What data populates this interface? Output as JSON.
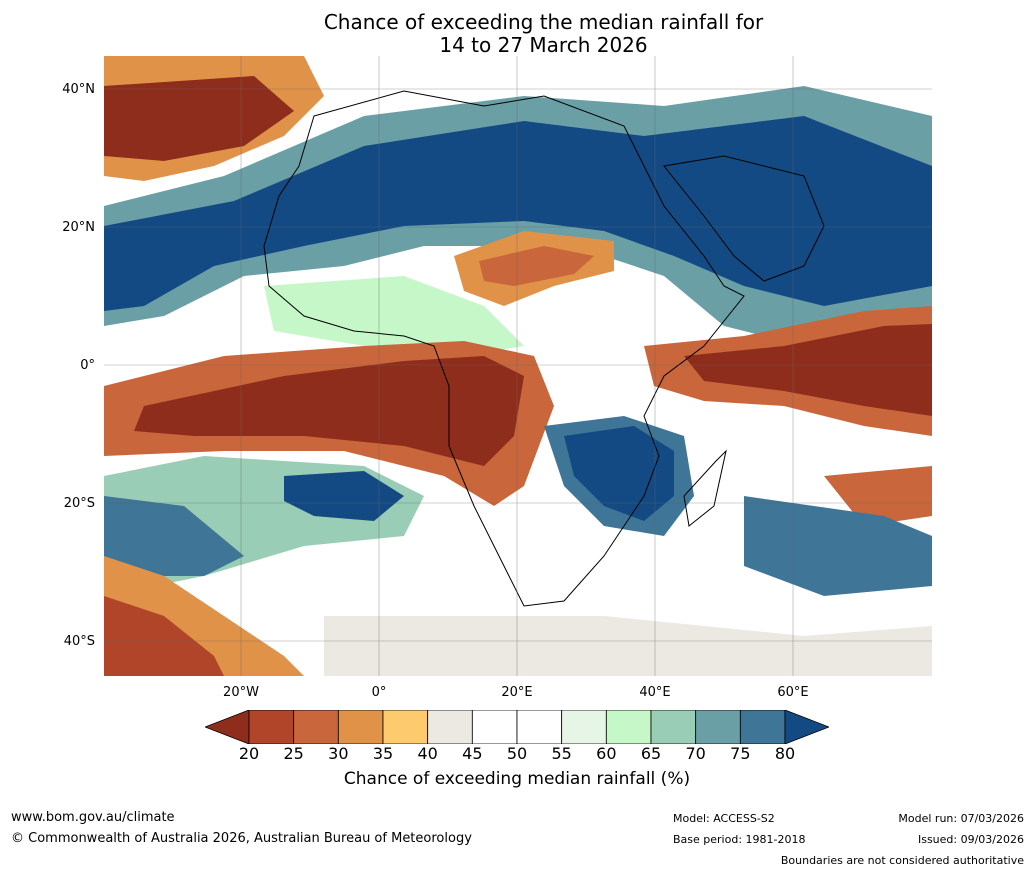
{
  "title": {
    "line1": "Chance of exceeding the median rainfall for",
    "line2": "14 to 27 March 2026"
  },
  "map": {
    "latitude_labels": [
      "40°N",
      "20°N",
      "0°",
      "20°S",
      "40°S"
    ],
    "longitude_labels": [
      "20°W",
      "0°",
      "20°E",
      "40°E",
      "60°E"
    ]
  },
  "colorbar": {
    "levels": [
      "20",
      "25",
      "30",
      "35",
      "40",
      "45",
      "50",
      "55",
      "60",
      "65",
      "70",
      "75",
      "80"
    ],
    "colors": [
      "#8f2d1c",
      "#b0452a",
      "#c9663b",
      "#e09248",
      "#fdca6e",
      "#ece9e3",
      "#ffffff",
      "#ffffff",
      "#e6f5e6",
      "#c5f7c9",
      "#99cdb5",
      "#6a9fa5",
      "#3f7596",
      "#134a84"
    ],
    "label": "Chance of exceeding median rainfall (%)"
  },
  "footer": {
    "website": "www.bom.gov.au/climate",
    "copyright": "© Commonwealth of Australia 2026, Australian Bureau of Meteorology",
    "model": "Model: ACCESS-S2",
    "base_period": "Base period: 1981-2018",
    "model_run": "Model run: 07/03/2026",
    "issued": "Issued: 09/03/2026",
    "disclaimer": "Boundaries are not considered authoritative"
  }
}
